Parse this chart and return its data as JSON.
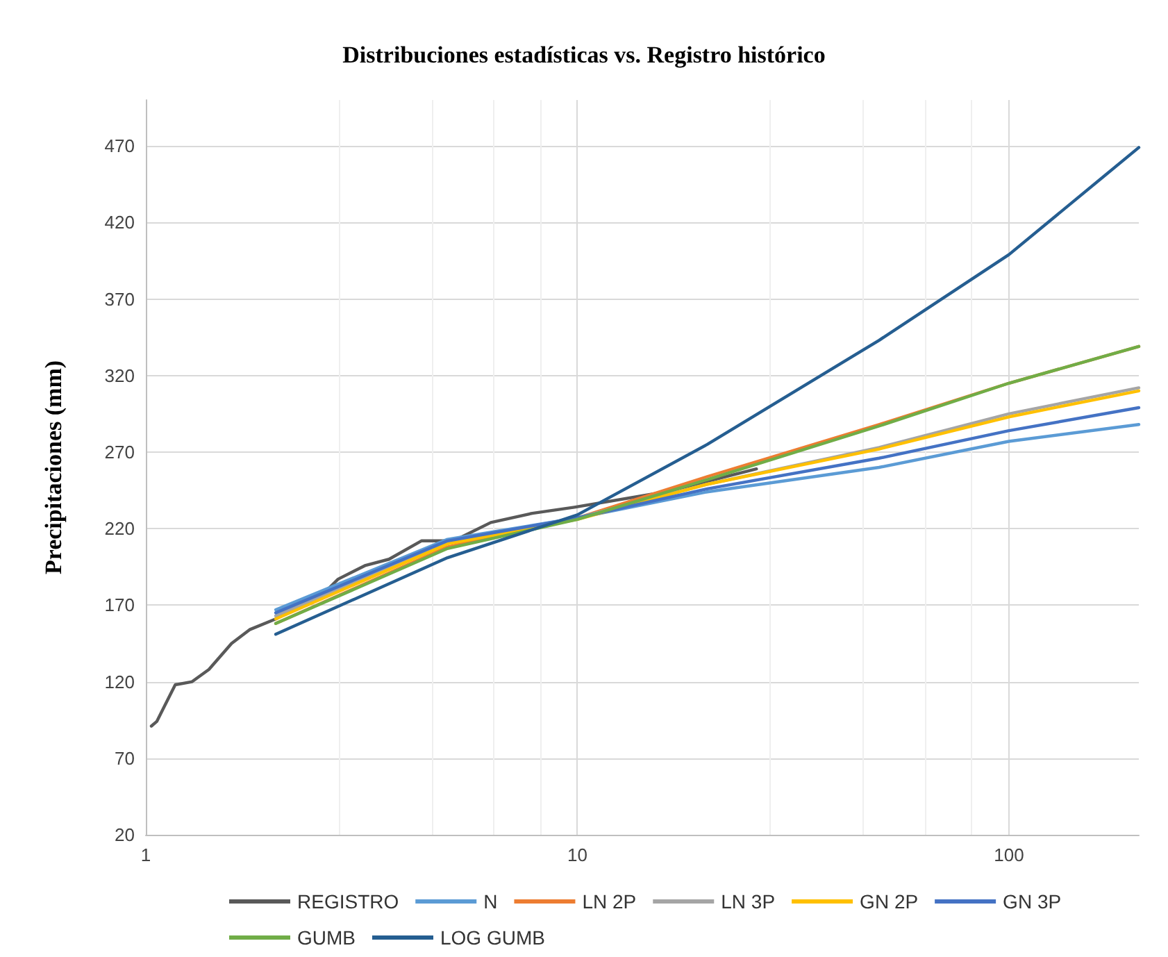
{
  "chart_data": {
    "type": "line",
    "title": "Distribuciones estadísticas vs. Registro histórico",
    "ylabel": "Precipitaciones (mm)",
    "log": "x",
    "xlim": [
      1,
      200
    ],
    "xticks": [
      1,
      10,
      100
    ],
    "ylim": [
      20,
      500
    ],
    "yticks": [
      20,
      70,
      120,
      170,
      220,
      270,
      320,
      370,
      420,
      470
    ],
    "grid": true,
    "legend": "bottom",
    "marker": "none",
    "line_style": "solid",
    "series": [
      {
        "name": "REGISTRO",
        "color": "#595959",
        "x": [
          1.03,
          1.06,
          1.17,
          1.28,
          1.4,
          1.58,
          1.74,
          2.0,
          2.59,
          2.79,
          3.23,
          3.66,
          4.35,
          5.17,
          6.3,
          7.86,
          9.84,
          16,
          26
        ],
        "values": [
          91,
          94,
          118,
          120,
          128,
          145,
          154,
          161,
          178,
          187,
          196,
          200,
          212,
          212,
          224,
          230,
          234,
          244,
          259
        ]
      },
      {
        "name": "N",
        "color": "#5b9bd5",
        "x": [
          2,
          5,
          10,
          20,
          50,
          100,
          200
        ],
        "values": [
          167,
          213,
          227,
          244,
          260,
          277,
          288
        ]
      },
      {
        "name": "LN 2P",
        "color": "#ed7d31",
        "x": [
          2,
          5,
          10,
          20,
          50,
          100,
          200
        ],
        "values": [
          158,
          208,
          227,
          254,
          288,
          315,
          339
        ]
      },
      {
        "name": "LN 3P",
        "color": "#a5a5a5",
        "x": [
          2,
          5,
          10,
          20,
          50,
          100,
          200
        ],
        "values": [
          163,
          211,
          227,
          249,
          273,
          295,
          312
        ]
      },
      {
        "name": "GN 2P",
        "color": "#ffc000",
        "x": [
          2,
          5,
          10,
          20,
          50,
          100,
          200
        ],
        "values": [
          161,
          210,
          226,
          249,
          272,
          293,
          310
        ]
      },
      {
        "name": "GN 3P",
        "color": "#4472c4",
        "x": [
          2,
          5,
          10,
          20,
          50,
          100,
          200
        ],
        "values": [
          165,
          212,
          227,
          246,
          266,
          284,
          299
        ]
      },
      {
        "name": "GUMB",
        "color": "#70ad47",
        "x": [
          2,
          5,
          10,
          20,
          50,
          100,
          200
        ],
        "values": [
          158,
          207,
          226,
          252,
          287,
          315,
          339
        ]
      },
      {
        "name": "LOG GUMB",
        "color": "#255e91",
        "x": [
          2,
          5,
          10,
          20,
          50,
          100,
          200
        ],
        "values": [
          151,
          201,
          229,
          275,
          343,
          399,
          469
        ]
      }
    ]
  }
}
